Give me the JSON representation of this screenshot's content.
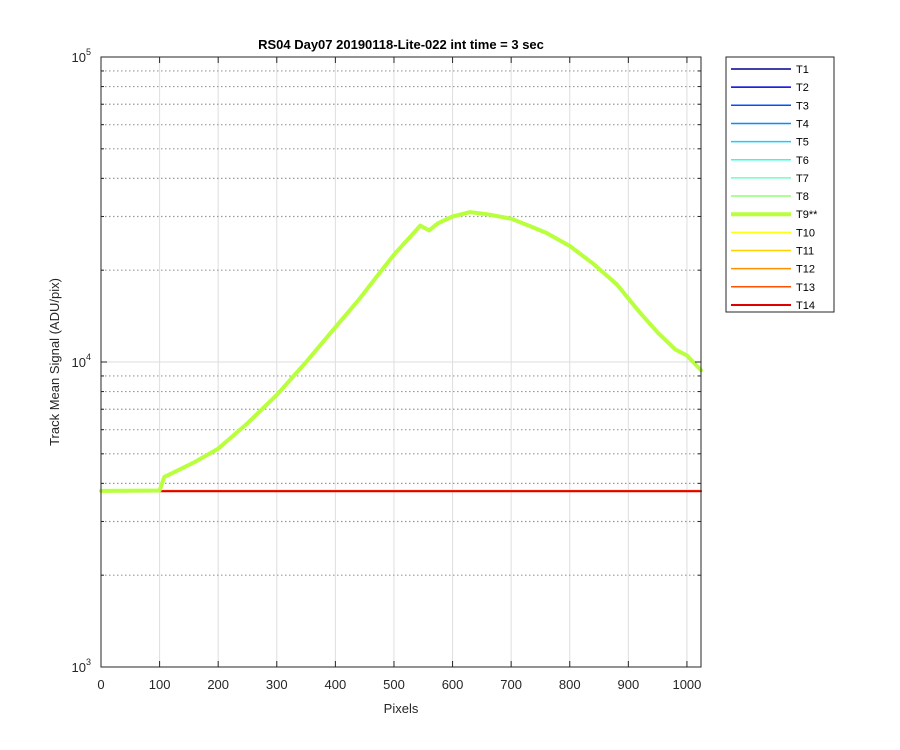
{
  "chart_data": {
    "type": "line",
    "title": "RS04 Day07 20190118-Lite-022 int time = 3 sec",
    "xlabel": "Pixels",
    "ylabel": "Track Mean Signal (ADU/pix)",
    "xlim": [
      0,
      1024
    ],
    "ylim": [
      1000,
      100000
    ],
    "yscale": "log",
    "grid": true,
    "minor_grid": true,
    "legend_position": "outside-top-right",
    "x_ticks": [
      0,
      100,
      200,
      300,
      400,
      500,
      600,
      700,
      800,
      900,
      1000
    ],
    "x_tick_labels": [
      "0",
      "100",
      "200",
      "300",
      "400",
      "500",
      "600",
      "700",
      "800",
      "900",
      "1000"
    ],
    "y_ticks": [
      {
        "value": 1000,
        "base": "10",
        "exp": "3"
      },
      {
        "value": 10000,
        "base": "10",
        "exp": "4"
      },
      {
        "value": 100000,
        "base": "10",
        "exp": "5"
      }
    ],
    "series": [
      {
        "name": "T1",
        "color": "#00008f",
        "width": 1.5,
        "y": 3780
      },
      {
        "name": "T2",
        "color": "#0000df",
        "width": 1.5,
        "y": 3780
      },
      {
        "name": "T3",
        "color": "#0050ff",
        "width": 1.5,
        "y": 3780
      },
      {
        "name": "T4",
        "color": "#0090ff",
        "width": 1.5,
        "y": 3780
      },
      {
        "name": "T5",
        "color": "#10d0ff",
        "width": 1.5,
        "y": 3780
      },
      {
        "name": "T6",
        "color": "#30ffdf",
        "width": 1.5,
        "y": 3780
      },
      {
        "name": "T7",
        "color": "#70ffc0",
        "width": 1.5,
        "y": 3780
      },
      {
        "name": "T8",
        "color": "#90ff70",
        "width": 1.5,
        "y": 3780
      },
      {
        "name": "T9**",
        "color": "#b8ff3c",
        "width": 4,
        "points": [
          [
            0,
            3780
          ],
          [
            100,
            3790
          ],
          [
            108,
            4200
          ],
          [
            130,
            4400
          ],
          [
            160,
            4700
          ],
          [
            200,
            5200
          ],
          [
            250,
            6300
          ],
          [
            300,
            7800
          ],
          [
            350,
            10000
          ],
          [
            400,
            13000
          ],
          [
            440,
            16000
          ],
          [
            470,
            19000
          ],
          [
            500,
            22500
          ],
          [
            530,
            26000
          ],
          [
            545,
            28000
          ],
          [
            560,
            27000
          ],
          [
            575,
            28500
          ],
          [
            600,
            30000
          ],
          [
            630,
            31000
          ],
          [
            660,
            30500
          ],
          [
            700,
            29500
          ],
          [
            730,
            28000
          ],
          [
            760,
            26500
          ],
          [
            800,
            24000
          ],
          [
            840,
            21000
          ],
          [
            880,
            18000
          ],
          [
            920,
            14500
          ],
          [
            950,
            12500
          ],
          [
            980,
            11000
          ],
          [
            1000,
            10500
          ],
          [
            1024,
            9400
          ]
        ]
      },
      {
        "name": "T10",
        "color": "#ffff10",
        "width": 1.5,
        "y": 3790
      },
      {
        "name": "T11",
        "color": "#ffd000",
        "width": 1.5,
        "y": 3790
      },
      {
        "name": "T12",
        "color": "#ff9000",
        "width": 1.5,
        "y": 3780
      },
      {
        "name": "T13",
        "color": "#ff5000",
        "width": 1.5,
        "y": 3780
      },
      {
        "name": "T14",
        "color": "#e00000",
        "width": 2,
        "y": 3770
      }
    ]
  }
}
